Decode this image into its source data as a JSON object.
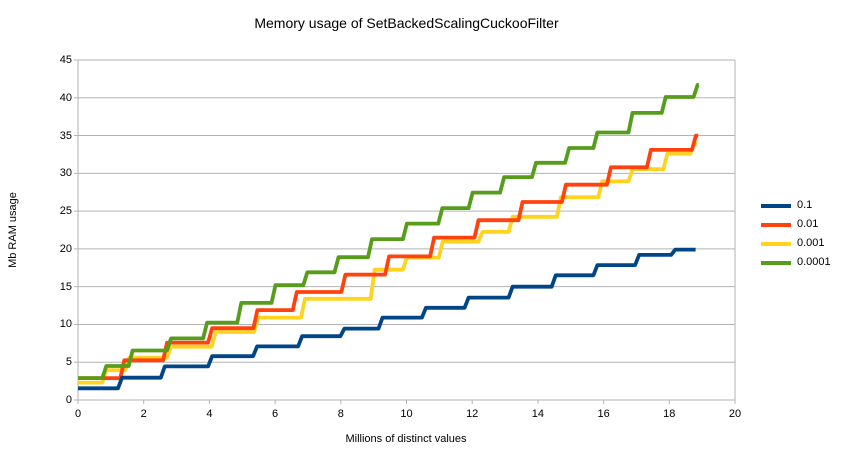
{
  "title": "Memory usage of SetBackedScalingCuckooFilter",
  "colors": {
    "background": "#ffffff",
    "grid": "#b3b3b3",
    "axis": "#b3b3b3",
    "text": "#000000",
    "series_blue": "#004586",
    "series_red": "#ff420e",
    "series_yellow": "#ffd320",
    "series_green": "#579d1c"
  },
  "legend": {
    "position": "right",
    "items": [
      {
        "label": "0.1",
        "color": "#004586"
      },
      {
        "label": "0.01",
        "color": "#ff420e"
      },
      {
        "label": "0.001",
        "color": "#ffd320"
      },
      {
        "label": "0.0001",
        "color": "#579d1c"
      }
    ]
  },
  "chart_data": {
    "type": "line",
    "subtype": "step-staircase",
    "title": "Memory usage of SetBackedScalingCuckooFilter",
    "xlabel": "Millions of distinct values",
    "ylabel": "Mb RAM usage",
    "xlim": [
      0,
      20
    ],
    "ylim": [
      0,
      45
    ],
    "x_ticks": [
      0,
      2,
      4,
      6,
      8,
      10,
      12,
      14,
      16,
      18,
      20
    ],
    "y_ticks": [
      0,
      5,
      10,
      15,
      20,
      25,
      30,
      35,
      40,
      45
    ],
    "grid": true,
    "legend_position": "right",
    "series_note": "steps are [x_million, Mb] pairs: value holds from that x until the next step; x_end is where the line stops",
    "series": [
      {
        "name": "0.1",
        "color": "#004586",
        "x_end": 18.8,
        "steps": [
          [
            0,
            1.55
          ],
          [
            1.28,
            2.95
          ],
          [
            2.58,
            4.45
          ],
          [
            4.02,
            5.8
          ],
          [
            5.39,
            7.1
          ],
          [
            6.76,
            8.45
          ],
          [
            8.05,
            9.45
          ],
          [
            9.21,
            10.9
          ],
          [
            10.53,
            12.2
          ],
          [
            11.83,
            13.55
          ],
          [
            13.17,
            15.0
          ],
          [
            14.48,
            16.5
          ],
          [
            15.75,
            17.85
          ],
          [
            17.02,
            19.2
          ],
          [
            18.12,
            19.9
          ]
        ]
      },
      {
        "name": "0.01",
        "color": "#ff420e",
        "x_end": 18.88,
        "steps": [
          [
            0,
            2.9
          ],
          [
            1.35,
            5.25
          ],
          [
            2.65,
            7.6
          ],
          [
            4.02,
            9.5
          ],
          [
            5.4,
            11.9
          ],
          [
            6.6,
            14.3
          ],
          [
            8.08,
            16.6
          ],
          [
            9.41,
            19.0
          ],
          [
            10.78,
            21.5
          ],
          [
            12.13,
            23.8
          ],
          [
            13.47,
            26.2
          ],
          [
            14.79,
            28.5
          ],
          [
            16.16,
            30.8
          ],
          [
            17.38,
            33.1
          ],
          [
            18.75,
            35.0
          ]
        ]
      },
      {
        "name": "0.001",
        "color": "#ffd320",
        "x_end": 18.85,
        "steps": [
          [
            0,
            2.3
          ],
          [
            0.8,
            3.95
          ],
          [
            1.5,
            5.6
          ],
          [
            2.77,
            7.05
          ],
          [
            4.13,
            9.0
          ],
          [
            5.42,
            10.9
          ],
          [
            6.85,
            13.4
          ],
          [
            8.97,
            17.25
          ],
          [
            9.95,
            18.85
          ],
          [
            11.04,
            20.95
          ],
          [
            12.25,
            22.25
          ],
          [
            13.17,
            24.25
          ],
          [
            14.64,
            26.85
          ],
          [
            15.9,
            28.95
          ],
          [
            16.82,
            30.55
          ],
          [
            17.88,
            32.6
          ],
          [
            18.7,
            33.9
          ]
        ]
      },
      {
        "name": "0.0001",
        "color": "#579d1c",
        "x_end": 18.9,
        "steps": [
          [
            0,
            2.9
          ],
          [
            0.8,
            4.5
          ],
          [
            1.6,
            6.55
          ],
          [
            2.77,
            8.15
          ],
          [
            3.87,
            10.25
          ],
          [
            4.91,
            12.85
          ],
          [
            5.95,
            15.2
          ],
          [
            6.92,
            16.9
          ],
          [
            7.87,
            18.9
          ],
          [
            8.89,
            21.3
          ],
          [
            9.95,
            23.35
          ],
          [
            11.03,
            25.4
          ],
          [
            11.95,
            27.45
          ],
          [
            12.91,
            29.5
          ],
          [
            13.88,
            31.4
          ],
          [
            14.89,
            33.35
          ],
          [
            15.75,
            35.4
          ],
          [
            16.82,
            38.0
          ],
          [
            17.83,
            40.1
          ],
          [
            18.8,
            41.7
          ]
        ]
      }
    ]
  }
}
